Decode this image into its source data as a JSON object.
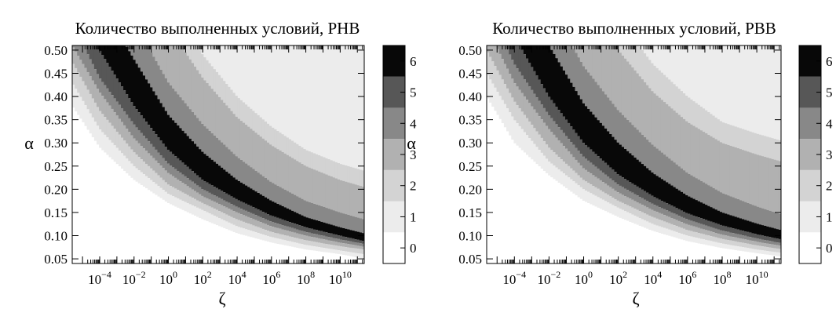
{
  "chart_data": [
    {
      "type": "heatmap",
      "title": "Количество выполненных условий, PHB",
      "xlabel": "ζ",
      "ylabel": "α",
      "xscale": "log",
      "xlim_log10": [
        -5.6,
        11.4
      ],
      "ylim": [
        0.04,
        0.51
      ],
      "x_ticks": [
        {
          "base": "10",
          "exp": "−4",
          "value": -4
        },
        {
          "base": "10",
          "exp": "−2",
          "value": -2
        },
        {
          "base": "10",
          "exp": "0",
          "value": 0
        },
        {
          "base": "10",
          "exp": "2",
          "value": 2
        },
        {
          "base": "10",
          "exp": "4",
          "value": 4
        },
        {
          "base": "10",
          "exp": "6",
          "value": 6
        },
        {
          "base": "10",
          "exp": "8",
          "value": 8
        },
        {
          "base": "10",
          "exp": "10",
          "value": 10
        }
      ],
      "y_ticks": [
        "0.50",
        "0.45",
        "0.40",
        "0.35",
        "0.30",
        "0.25",
        "0.20",
        "0.15",
        "0.10",
        "0.05"
      ],
      "y_tick_values": [
        0.5,
        0.45,
        0.4,
        0.35,
        0.3,
        0.25,
        0.2,
        0.15,
        0.1,
        0.05
      ],
      "colorbar": {
        "label": "",
        "ticks": [
          "6",
          "5",
          "4",
          "3",
          "2",
          "1",
          "0"
        ],
        "tick_values": [
          6,
          5,
          4,
          3,
          2,
          1,
          0
        ],
        "range": [
          -0.5,
          6.5
        ]
      },
      "levels": [
        0,
        1,
        2,
        3,
        4,
        5,
        6
      ],
      "level_colors": [
        "#ffffff",
        "#ececec",
        "#d3d3d3",
        "#b1b1b1",
        "#888888",
        "#575757",
        "#080808"
      ],
      "region_value_above_outer": 1,
      "iso_boundaries": [
        {
          "between": [
            0,
            1
          ],
          "alpha_at_log_zeta": [
            [
              -5.6,
              0.38
            ],
            [
              -4,
              0.29
            ],
            [
              -2,
              0.22
            ],
            [
              0,
              0.17
            ],
            [
              2,
              0.135
            ],
            [
              4,
              0.105
            ],
            [
              6,
              0.085
            ],
            [
              8,
              0.07
            ],
            [
              10,
              0.06
            ],
            [
              11.4,
              0.05
            ]
          ]
        },
        {
          "between": [
            1,
            2
          ],
          "alpha_at_log_zeta": [
            [
              -5.6,
              0.43
            ],
            [
              -4,
              0.33
            ],
            [
              -2,
              0.25
            ],
            [
              0,
              0.19
            ],
            [
              2,
              0.155
            ],
            [
              4,
              0.12
            ],
            [
              6,
              0.097
            ],
            [
              8,
              0.08
            ],
            [
              10,
              0.068
            ],
            [
              11.4,
              0.06
            ]
          ]
        },
        {
          "between": [
            2,
            3
          ],
          "alpha_at_log_zeta": [
            [
              -5.6,
              0.475
            ],
            [
              -4,
              0.37
            ],
            [
              -2,
              0.28
            ],
            [
              0,
              0.21
            ],
            [
              2,
              0.17
            ],
            [
              4,
              0.135
            ],
            [
              6,
              0.108
            ],
            [
              8,
              0.09
            ],
            [
              10,
              0.077
            ],
            [
              11.4,
              0.07
            ]
          ]
        },
        {
          "between": [
            3,
            4
          ],
          "alpha_at_log_zeta": [
            [
              -5.6,
              0.51
            ],
            [
              -4,
              0.41
            ],
            [
              -2,
              0.31
            ],
            [
              0,
              0.235
            ],
            [
              2,
              0.185
            ],
            [
              4,
              0.15
            ],
            [
              6,
              0.12
            ],
            [
              8,
              0.1
            ],
            [
              10,
              0.085
            ],
            [
              11.4,
              0.076
            ]
          ]
        },
        {
          "between": [
            4,
            5
          ],
          "alpha_at_log_zeta": [
            [
              -5.6,
              0.56
            ],
            [
              -4,
              0.44
            ],
            [
              -2,
              0.34
            ],
            [
              0,
              0.255
            ],
            [
              2,
              0.2
            ],
            [
              4,
              0.162
            ],
            [
              6,
              0.13
            ],
            [
              8,
              0.108
            ],
            [
              10,
              0.092
            ],
            [
              11.4,
              0.082
            ]
          ]
        },
        {
          "between": [
            5,
            6
          ],
          "alpha_at_log_zeta": [
            [
              -5.6,
              0.62
            ],
            [
              -4,
              0.5
            ],
            [
              -2,
              0.38
            ],
            [
              0,
              0.285
            ],
            [
              2,
              0.22
            ],
            [
              4,
              0.178
            ],
            [
              6,
              0.143
            ],
            [
              8,
              0.118
            ],
            [
              10,
              0.1
            ],
            [
              11.4,
              0.088
            ]
          ]
        },
        {
          "between": [
            6,
            4
          ],
          "alpha_at_log_zeta": [
            [
              -5.6,
              0.76
            ],
            [
              -4,
              0.61
            ],
            [
              -2,
              0.48
            ],
            [
              0,
              0.36
            ],
            [
              2,
              0.28
            ],
            [
              4,
              0.22
            ],
            [
              6,
              0.175
            ],
            [
              8,
              0.14
            ],
            [
              10,
              0.118
            ],
            [
              11.4,
              0.105
            ]
          ]
        },
        {
          "between": [
            4,
            3
          ],
          "alpha_at_log_zeta": [
            [
              -5.6,
              0.85
            ],
            [
              -4,
              0.7
            ],
            [
              -2,
              0.56
            ],
            [
              0,
              0.43
            ],
            [
              2,
              0.34
            ],
            [
              4,
              0.27
            ],
            [
              6,
              0.215
            ],
            [
              8,
              0.175
            ],
            [
              10,
              0.15
            ],
            [
              11.4,
              0.135
            ]
          ]
        },
        {
          "between": [
            3,
            2
          ],
          "alpha_at_log_zeta": [
            [
              -5.6,
              1.0
            ],
            [
              -4,
              0.84
            ],
            [
              -2,
              0.69
            ],
            [
              0,
              0.55
            ],
            [
              2,
              0.44
            ],
            [
              4,
              0.355
            ],
            [
              6,
              0.295
            ],
            [
              8,
              0.25
            ],
            [
              10,
              0.22
            ],
            [
              11.4,
              0.205
            ]
          ]
        },
        {
          "between": [
            2,
            1
          ],
          "alpha_at_log_zeta": [
            [
              -5.6,
              1.1
            ],
            [
              -4,
              0.93
            ],
            [
              -2,
              0.76
            ],
            [
              0,
              0.61
            ],
            [
              2,
              0.49
            ],
            [
              4,
              0.4
            ],
            [
              6,
              0.335
            ],
            [
              8,
              0.285
            ],
            [
              10,
              0.255
            ],
            [
              11.4,
              0.24
            ]
          ]
        }
      ]
    },
    {
      "type": "heatmap",
      "title": "Количество выполненных условий, PBB",
      "xlabel": "ζ",
      "ylabel": "α",
      "xscale": "log",
      "xlim_log10": [
        -5.6,
        11.4
      ],
      "ylim": [
        0.04,
        0.51
      ],
      "x_ticks": [
        {
          "base": "10",
          "exp": "−4",
          "value": -4
        },
        {
          "base": "10",
          "exp": "−2",
          "value": -2
        },
        {
          "base": "10",
          "exp": "0",
          "value": 0
        },
        {
          "base": "10",
          "exp": "2",
          "value": 2
        },
        {
          "base": "10",
          "exp": "4",
          "value": 4
        },
        {
          "base": "10",
          "exp": "6",
          "value": 6
        },
        {
          "base": "10",
          "exp": "8",
          "value": 8
        },
        {
          "base": "10",
          "exp": "10",
          "value": 10
        }
      ],
      "y_ticks": [
        "0.50",
        "0.45",
        "0.40",
        "0.35",
        "0.30",
        "0.25",
        "0.20",
        "0.15",
        "0.10",
        "0.05"
      ],
      "y_tick_values": [
        0.5,
        0.45,
        0.4,
        0.35,
        0.3,
        0.25,
        0.2,
        0.15,
        0.1,
        0.05
      ],
      "colorbar": {
        "label": "",
        "ticks": [
          "6",
          "5",
          "4",
          "3",
          "2",
          "1",
          "0"
        ],
        "tick_values": [
          6,
          5,
          4,
          3,
          2,
          1,
          0
        ],
        "range": [
          -0.5,
          6.5
        ]
      },
      "levels": [
        0,
        1,
        2,
        3,
        4,
        5,
        6
      ],
      "level_colors": [
        "#ffffff",
        "#ececec",
        "#d3d3d3",
        "#b1b1b1",
        "#888888",
        "#575757",
        "#080808"
      ],
      "region_value_above_outer": 1,
      "iso_boundaries": [
        {
          "between": [
            0,
            1
          ],
          "alpha_at_log_zeta": [
            [
              -5.6,
              0.4
            ],
            [
              -4,
              0.3
            ],
            [
              -2,
              0.23
            ],
            [
              0,
              0.175
            ],
            [
              2,
              0.14
            ],
            [
              4,
              0.11
            ],
            [
              6,
              0.088
            ],
            [
              8,
              0.073
            ],
            [
              10,
              0.062
            ],
            [
              11.4,
              0.055
            ]
          ]
        },
        {
          "between": [
            1,
            2
          ],
          "alpha_at_log_zeta": [
            [
              -5.6,
              0.45
            ],
            [
              -4,
              0.35
            ],
            [
              -2,
              0.26
            ],
            [
              0,
              0.2
            ],
            [
              2,
              0.16
            ],
            [
              4,
              0.125
            ],
            [
              6,
              0.1
            ],
            [
              8,
              0.083
            ],
            [
              10,
              0.07
            ],
            [
              11.4,
              0.063
            ]
          ]
        },
        {
          "between": [
            2,
            3
          ],
          "alpha_at_log_zeta": [
            [
              -5.6,
              0.5
            ],
            [
              -4,
              0.39
            ],
            [
              -2,
              0.29
            ],
            [
              0,
              0.22
            ],
            [
              2,
              0.175
            ],
            [
              4,
              0.14
            ],
            [
              6,
              0.112
            ],
            [
              8,
              0.093
            ],
            [
              10,
              0.079
            ],
            [
              11.4,
              0.071
            ]
          ]
        },
        {
          "between": [
            3,
            4
          ],
          "alpha_at_log_zeta": [
            [
              -5.6,
              0.55
            ],
            [
              -4,
              0.43
            ],
            [
              -2,
              0.33
            ],
            [
              0,
              0.245
            ],
            [
              2,
              0.193
            ],
            [
              4,
              0.155
            ],
            [
              6,
              0.124
            ],
            [
              8,
              0.102
            ],
            [
              10,
              0.087
            ],
            [
              11.4,
              0.078
            ]
          ]
        },
        {
          "between": [
            4,
            5
          ],
          "alpha_at_log_zeta": [
            [
              -5.6,
              0.6
            ],
            [
              -4,
              0.47
            ],
            [
              -2,
              0.36
            ],
            [
              0,
              0.27
            ],
            [
              2,
              0.21
            ],
            [
              4,
              0.168
            ],
            [
              6,
              0.135
            ],
            [
              8,
              0.111
            ],
            [
              10,
              0.094
            ],
            [
              11.4,
              0.084
            ]
          ]
        },
        {
          "between": [
            5,
            6
          ],
          "alpha_at_log_zeta": [
            [
              -5.6,
              0.66
            ],
            [
              -4,
              0.53
            ],
            [
              -2,
              0.4
            ],
            [
              0,
              0.3
            ],
            [
              2,
              0.232
            ],
            [
              4,
              0.185
            ],
            [
              6,
              0.148
            ],
            [
              8,
              0.122
            ],
            [
              10,
              0.103
            ],
            [
              11.4,
              0.092
            ]
          ]
        },
        {
          "between": [
            6,
            4
          ],
          "alpha_at_log_zeta": [
            [
              -5.6,
              0.8
            ],
            [
              -4,
              0.65
            ],
            [
              -2,
              0.51
            ],
            [
              0,
              0.385
            ],
            [
              2,
              0.3
            ],
            [
              4,
              0.235
            ],
            [
              6,
              0.186
            ],
            [
              8,
              0.15
            ],
            [
              10,
              0.126
            ],
            [
              11.4,
              0.112
            ]
          ]
        },
        {
          "between": [
            4,
            3
          ],
          "alpha_at_log_zeta": [
            [
              -5.6,
              0.9
            ],
            [
              -4,
              0.74
            ],
            [
              -2,
              0.6
            ],
            [
              0,
              0.465
            ],
            [
              2,
              0.37
            ],
            [
              4,
              0.295
            ],
            [
              6,
              0.235
            ],
            [
              8,
              0.192
            ],
            [
              10,
              0.163
            ],
            [
              11.4,
              0.146
            ]
          ]
        },
        {
          "between": [
            3,
            2
          ],
          "alpha_at_log_zeta": [
            [
              -5.6,
              1.05
            ],
            [
              -4,
              0.9
            ],
            [
              -2,
              0.75
            ],
            [
              0,
              0.61
            ],
            [
              2,
              0.5
            ],
            [
              4,
              0.41
            ],
            [
              6,
              0.345
            ],
            [
              8,
              0.3
            ],
            [
              10,
              0.275
            ],
            [
              11.4,
              0.26
            ]
          ]
        },
        {
          "between": [
            2,
            1
          ],
          "alpha_at_log_zeta": [
            [
              -5.6,
              1.15
            ],
            [
              -4,
              1.0
            ],
            [
              -2,
              0.84
            ],
            [
              0,
              0.69
            ],
            [
              2,
              0.57
            ],
            [
              4,
              0.47
            ],
            [
              6,
              0.4
            ],
            [
              8,
              0.345
            ],
            [
              10,
              0.32
            ],
            [
              11.4,
              0.305
            ]
          ]
        }
      ]
    }
  ]
}
